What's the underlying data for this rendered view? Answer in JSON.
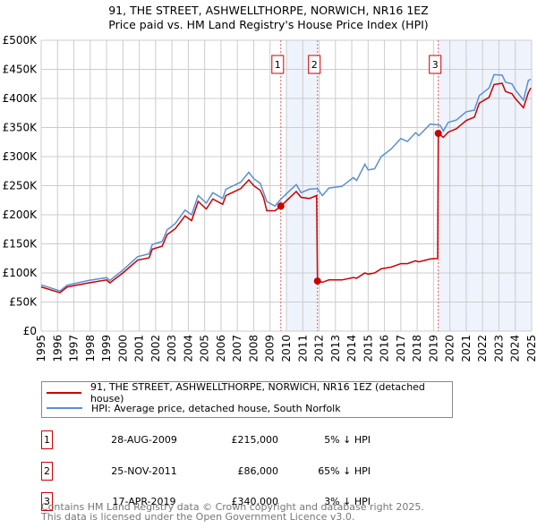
{
  "chart_data": {
    "type": "line",
    "title": "91, THE STREET, ASHWELLTHORPE, NORWICH, NR16 1EZ",
    "subtitle": "Price paid vs. HM Land Registry's House Price Index (HPI)",
    "xlim": [
      1995,
      2025
    ],
    "ylim": [
      0,
      500000
    ],
    "y_ticks": [
      0,
      50000,
      100000,
      150000,
      200000,
      250000,
      300000,
      350000,
      400000,
      450000,
      500000
    ],
    "y_tick_labels": [
      "£0",
      "£50K",
      "£100K",
      "£150K",
      "£200K",
      "£250K",
      "£300K",
      "£350K",
      "£400K",
      "£450K",
      "£500K"
    ],
    "x_ticks": [
      1995,
      1996,
      1997,
      1998,
      1999,
      2000,
      2001,
      2002,
      2003,
      2004,
      2005,
      2006,
      2007,
      2008,
      2009,
      2010,
      2011,
      2012,
      2013,
      2014,
      2015,
      2016,
      2017,
      2018,
      2019,
      2020,
      2021,
      2022,
      2023,
      2024,
      2025
    ],
    "x_tick_labels": [
      "1995",
      "1996",
      "1997",
      "1998",
      "1999",
      "2000",
      "2001",
      "2002",
      "2003",
      "2004",
      "2005",
      "2006",
      "2007",
      "2008",
      "2009",
      "2010",
      "2011",
      "2012",
      "2013",
      "2014",
      "2015",
      "2016",
      "2017",
      "2018",
      "2019",
      "2020",
      "2021",
      "2022",
      "2023",
      "2024",
      "2025"
    ],
    "grid": true,
    "shaded_ranges": [
      [
        2010.0,
        2011.9
      ],
      [
        2019.29,
        2025
      ]
    ],
    "series": [
      {
        "name": "91, THE STREET, ASHWELLTHORPE, NORWICH, NR16 1EZ (detached house)",
        "color": "#cc0000",
        "x": [
          1995.0,
          1996.15,
          1996.6,
          1997.9,
          1999.0,
          1999.2,
          2000,
          2000.9,
          2001.6,
          2001.8,
          2002.4,
          2002.7,
          2003.2,
          2003.8,
          2004.2,
          2004.6,
          2005.1,
          2005.5,
          2006.1,
          2006.3,
          2007.2,
          2007.7,
          2008.0,
          2008.4,
          2008.6,
          2008.8,
          2009.3,
          2009.66,
          2010.6,
          2010.9,
          2011.4,
          2011.85,
          2011.9,
          2012.2,
          2012.6,
          2013.4,
          2014.1,
          2014.3,
          2014.8,
          2015.0,
          2015.4,
          2015.8,
          2016.4,
          2017.0,
          2017.4,
          2017.9,
          2018.1,
          2018.8,
          2019.25,
          2019.29,
          2019.6,
          2019.9,
          2020.4,
          2021.0,
          2021.5,
          2021.8,
          2022.4,
          2022.7,
          2023.2,
          2023.4,
          2023.8,
          2024.0,
          2024.5,
          2024.8,
          2024.95
        ],
        "y": [
          76000,
          66000,
          76000,
          83000,
          88000,
          83000,
          100000,
          122000,
          126000,
          141000,
          146000,
          166000,
          176000,
          198000,
          190000,
          223000,
          210000,
          227000,
          218000,
          233000,
          245000,
          260000,
          250000,
          242000,
          230000,
          207000,
          207000,
          215000,
          240000,
          230000,
          228000,
          233000,
          86000,
          84000,
          88000,
          88000,
          92000,
          91000,
          100000,
          98000,
          100000,
          107000,
          110000,
          116000,
          116000,
          121000,
          119000,
          124000,
          125000,
          340000,
          333000,
          342000,
          348000,
          362000,
          368000,
          392000,
          402000,
          424000,
          426000,
          412000,
          408000,
          400000,
          384000,
          410000,
          418000
        ]
      },
      {
        "name": "HPI: Average price, detached house, South Norfolk",
        "color": "#5b8fd4",
        "x": [
          1995.0,
          1996.15,
          1996.6,
          1997.9,
          1999.0,
          1999.2,
          2000,
          2000.9,
          2001.6,
          2001.8,
          2002.4,
          2002.7,
          2003.2,
          2003.8,
          2004.2,
          2004.6,
          2005.1,
          2005.5,
          2006.1,
          2006.3,
          2007.2,
          2007.7,
          2008.0,
          2008.4,
          2008.8,
          2009.3,
          2009.7,
          2010.6,
          2010.9,
          2011.4,
          2011.9,
          2012.2,
          2012.6,
          2013.4,
          2014.1,
          2014.3,
          2014.8,
          2015.0,
          2015.4,
          2015.8,
          2016.4,
          2017.0,
          2017.4,
          2017.9,
          2018.1,
          2018.8,
          2019.4,
          2019.6,
          2019.9,
          2020.4,
          2021.0,
          2021.5,
          2021.8,
          2022.4,
          2022.7,
          2023.2,
          2023.4,
          2023.8,
          2024.0,
          2024.5,
          2024.8,
          2024.95
        ],
        "y": [
          79500,
          69000,
          79000,
          87000,
          92000,
          87000,
          105000,
          128000,
          133000,
          149000,
          154000,
          174000,
          185000,
          208000,
          200000,
          233000,
          220000,
          238000,
          228000,
          244000,
          256000,
          273000,
          262000,
          254000,
          223000,
          215000,
          228000,
          252000,
          238000,
          244000,
          245000,
          233000,
          246000,
          249000,
          264000,
          259000,
          287000,
          277000,
          279000,
          300000,
          313000,
          331000,
          326000,
          341000,
          336000,
          356000,
          354000,
          344000,
          359000,
          363000,
          377000,
          380000,
          405000,
          418000,
          441000,
          440000,
          428000,
          425000,
          415000,
          397000,
          431000,
          433000
        ]
      }
    ],
    "sales": [
      {
        "label": "1",
        "x": 2009.66,
        "y": 215000,
        "date": "28-AUG-2009",
        "price": "£215,000",
        "hpi": "5% ↓ HPI"
      },
      {
        "label": "2",
        "x": 2011.9,
        "y": 86000,
        "date": "25-NOV-2011",
        "price": "£86,000",
        "hpi": "65% ↓ HPI"
      },
      {
        "label": "3",
        "x": 2019.29,
        "y": 340000,
        "date": "17-APR-2019",
        "price": "£340,000",
        "hpi": "3% ↓ HPI"
      }
    ]
  },
  "legend": {
    "property": "91, THE STREET, ASHWELLTHORPE, NORWICH, NR16 1EZ (detached house)",
    "hpi": "HPI: Average price, detached house, South Norfolk"
  },
  "footer": {
    "line1": "Contains HM Land Registry data © Crown copyright and database right 2025.",
    "line2": "This data is licensed under the Open Government Licence v3.0."
  }
}
